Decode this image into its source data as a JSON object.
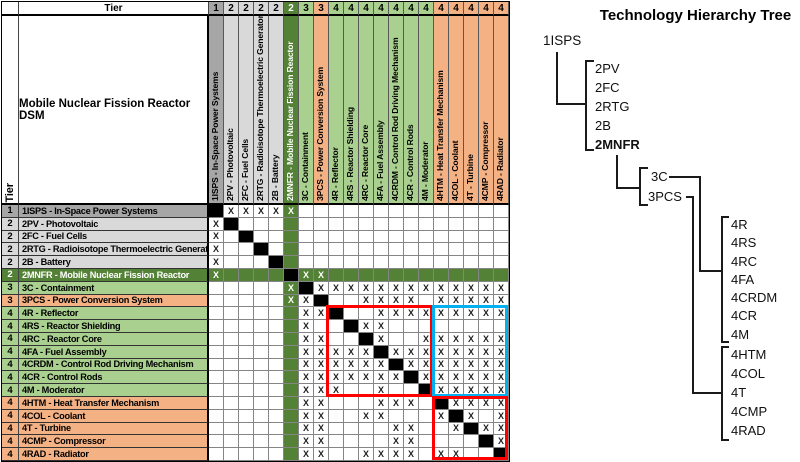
{
  "dsm": {
    "tier_header": "Tier",
    "tier_side": "Tier",
    "matrix_title": "Mobile Nuclear Fission Reactor DSM",
    "items": [
      {
        "id": "1ISPS",
        "tier": "1",
        "group": "gray",
        "label": "1ISPS - In-Space Power Systems"
      },
      {
        "id": "2PV",
        "tier": "2",
        "group": "lgray",
        "label": "2PV - Photovoltaic"
      },
      {
        "id": "2FC",
        "tier": "2",
        "group": "lgray",
        "label": "2FC - Fuel Cells"
      },
      {
        "id": "2RTG",
        "tier": "2",
        "group": "lgray",
        "label": "2RTG - Radioisotope Thermoelectric Generator"
      },
      {
        "id": "2B",
        "tier": "2",
        "group": "lgray",
        "label": "2B - Battery"
      },
      {
        "id": "2MNFR",
        "tier": "2",
        "group": "dgreen",
        "label": "2MNFR - Mobile Nuclear Fission Reactor"
      },
      {
        "id": "3C",
        "tier": "3",
        "group": "green",
        "label": "3C - Containment"
      },
      {
        "id": "3PCS",
        "tier": "3",
        "group": "orange",
        "label": "3PCS - Power Conversion System"
      },
      {
        "id": "4R",
        "tier": "4",
        "group": "green",
        "label": "4R - Reflector"
      },
      {
        "id": "4RS",
        "tier": "4",
        "group": "green",
        "label": "4RS - Reactor Shielding"
      },
      {
        "id": "4RC",
        "tier": "4",
        "group": "green",
        "label": "4RC - Reactor Core"
      },
      {
        "id": "4FA",
        "tier": "4",
        "group": "green",
        "label": "4FA - Fuel Assembly"
      },
      {
        "id": "4CRDM",
        "tier": "4",
        "group": "green",
        "label": "4CRDM - Control Rod Driving Mechanism"
      },
      {
        "id": "4CR",
        "tier": "4",
        "group": "green",
        "label": "4CR - Control Rods"
      },
      {
        "id": "4M",
        "tier": "4",
        "group": "green",
        "label": "4M - Moderator"
      },
      {
        "id": "4HTM",
        "tier": "4",
        "group": "orange",
        "label": "4HTM - Heat Transfer Mechanism"
      },
      {
        "id": "4COL",
        "tier": "4",
        "group": "orange",
        "label": "4COL - Coolant"
      },
      {
        "id": "4T",
        "tier": "4",
        "group": "orange",
        "label": "4T - Turbine"
      },
      {
        "id": "4CMP",
        "tier": "4",
        "group": "orange",
        "label": "4CMP - Compressor"
      },
      {
        "id": "4RAD",
        "tier": "4",
        "group": "orange",
        "label": "4RAD - Radiator"
      }
    ],
    "mark_glyph": "X",
    "marks": [
      "DXXXXW..............",
      "XD..................",
      "X.D.................",
      "X..D................",
      "X...D...............",
      "W....DWW............",
      ".....WDXXXXXXXXXXXXX",
      ".....WXD..XXXX.XXXXX",
      "......XXD..XXXXXXXXX",
      "......X..DXX........",
      "......XX..DX..XXXXXX",
      "......XXXXXDXXXXXXXX",
      "......XXXXXXDXXXXXXX",
      "......XXXXXXXDXXXXXX",
      "......XXX..X..DXXXXX",
      "......XX...XXX.DXXXX",
      "......XX..XX...XDX.X",
      "......XX....XX..XDXX",
      "......XX....XX....DX",
      "......XX..XXXX.XX..D"
    ]
  },
  "tree": {
    "title": "Technology Hierarchy Tree",
    "root": "1ISPS",
    "tier2": [
      "2PV",
      "2FC",
      "2RTG",
      "2B",
      "2MNFR"
    ],
    "tier3": [
      "3C",
      "3PCS"
    ],
    "tier4_containment": [
      "4R",
      "4RS",
      "4RC",
      "4FA",
      "4CRDM",
      "4CR",
      "4M"
    ],
    "tier4_pcs": [
      "4HTM",
      "4COL",
      "4T",
      "4CMP",
      "4RAD"
    ]
  },
  "colors": {
    "tier1_gray": "#a6a6a6",
    "tier2_light_gray": "#d9d9d9",
    "mnfr_dark_green": "#538135",
    "containment_light_green": "#a9d08e",
    "pcs_orange": "#f4b183",
    "cluster_box_red": "#ff0000",
    "interface_box_blue": "#00b0f0",
    "diagonal_black": "#000000"
  }
}
